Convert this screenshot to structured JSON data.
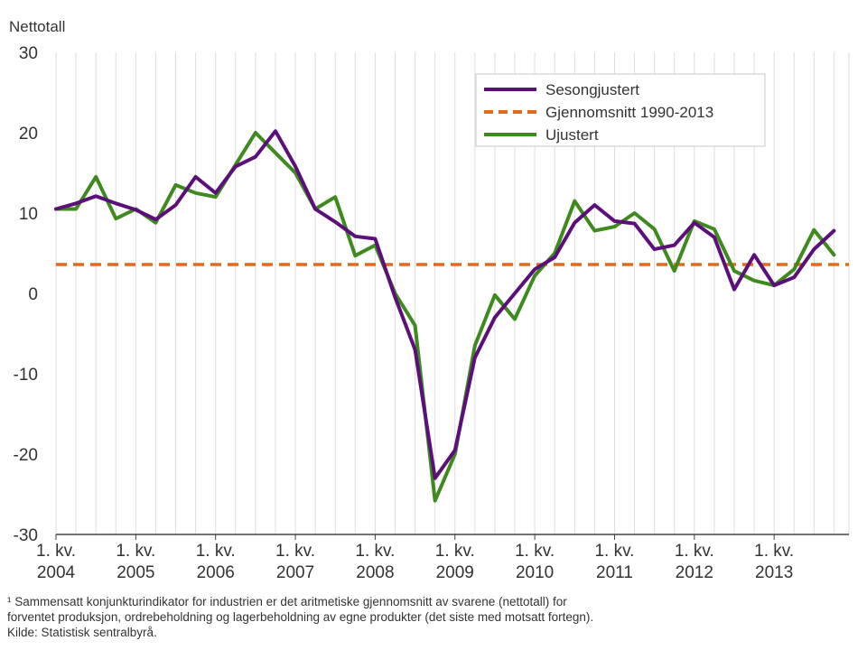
{
  "chart_data": {
    "type": "line",
    "ylabel": "Nettotall",
    "ylim": [
      -30,
      30
    ],
    "yticks": [
      30,
      20,
      10,
      0,
      -10,
      -20,
      -30
    ],
    "grid": "vertical",
    "x_tick_labels": [
      {
        "line1": "1. kv.",
        "line2": "2004"
      },
      {
        "line1": "1. kv.",
        "line2": "2005"
      },
      {
        "line1": "1. kv.",
        "line2": "2006"
      },
      {
        "line1": "1. kv.",
        "line2": "2007"
      },
      {
        "line1": "1. kv.",
        "line2": "2008"
      },
      {
        "line1": "1. kv.",
        "line2": "2009"
      },
      {
        "line1": "1. kv.",
        "line2": "2010"
      },
      {
        "line1": "1. kv.",
        "line2": "2011"
      },
      {
        "line1": "1. kv.",
        "line2": "2012"
      },
      {
        "line1": "1. kv.",
        "line2": "2013"
      }
    ],
    "legend_position": "top-right",
    "series": [
      {
        "name": "Sesongjustert",
        "color": "#5c0f7a",
        "style": "solid",
        "values": [
          10.5,
          11.2,
          12.1,
          11.2,
          10.4,
          9.2,
          11,
          14.5,
          12.5,
          15.8,
          17,
          20.2,
          15.8,
          10.5,
          8.9,
          7.1,
          6.8,
          -0.5,
          -7,
          -23,
          -19.5,
          -8,
          -3,
          0,
          3,
          4.5,
          8.8,
          11,
          9,
          8.7,
          5.5,
          6,
          8.8,
          7,
          0.5,
          4.8,
          1,
          2,
          5.5,
          7.8
        ]
      },
      {
        "name": "Gjennomsnitt 1990-2013",
        "color": "#e06b1a",
        "style": "dashed",
        "values": [
          3.6
        ]
      },
      {
        "name": "Ujustert",
        "color": "#3e8a1e",
        "style": "solid",
        "values": [
          10.5,
          10.5,
          14.5,
          9.3,
          10.5,
          8.8,
          13.5,
          12.5,
          12,
          16,
          20,
          17.5,
          15,
          10.5,
          12,
          4.7,
          6,
          0,
          -4,
          -25.8,
          -20,
          -6.5,
          -0.2,
          -3.2,
          2.2,
          5,
          11.5,
          7.8,
          8.3,
          10,
          8,
          2.8,
          9,
          8,
          2.8,
          1.6,
          1,
          3,
          7.9,
          4.8
        ]
      }
    ]
  },
  "footnote": {
    "line1": "¹ Sammensatt konjunkturindikator for industrien er det aritmetiske gjennomsnitt av svarene (nettotall) for",
    "line2": "forventet produksjon, ordrebeholdning og lagerbeholdning av egne produkter (det siste med motsatt fortegn).",
    "line3": "Kilde: Statistisk sentralbyrå."
  }
}
